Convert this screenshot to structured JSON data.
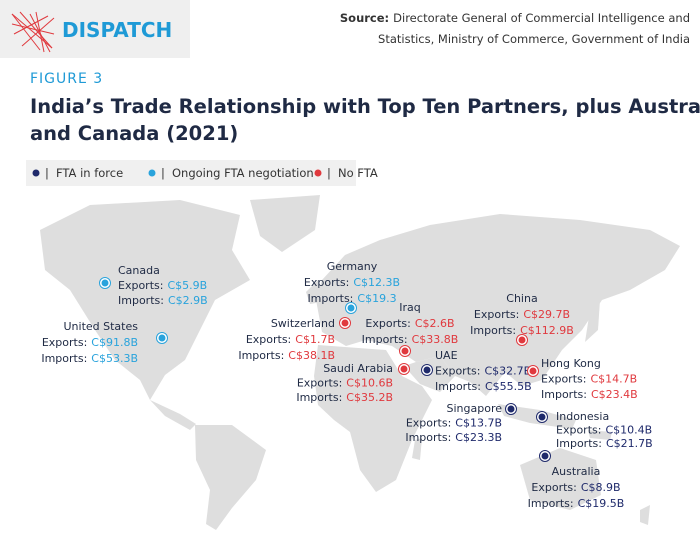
{
  "header": {
    "logo": "DISPATCH",
    "source": {
      "label": "Source:",
      "lines": [
        "Directorate General of Commercial Intelligence and",
        "Statistics, Ministry of Commerce, Government of India"
      ]
    }
  },
  "figure": "FIGURE 3",
  "title": [
    "India’s Trade Relationship with Top Ten Partners, plus Australia,",
    "and Canada (2021)"
  ],
  "legend": {
    "separator": "|",
    "items": [
      {
        "label": "FTA in force",
        "color": "#1f2a6b"
      },
      {
        "label": "Ongoing FTA negotiation",
        "color": "#29a3dc"
      },
      {
        "label": "No FTA",
        "color": "#e0393e"
      }
    ]
  },
  "locations": [
    {
      "name": "Canada",
      "color": "#29a3dc",
      "exports": {
        "label": "Exports:",
        "value": "C$5.9B"
      },
      "imports": {
        "label": "Imports:",
        "value": "C$2.9B"
      }
    },
    {
      "name": "United States",
      "color": "#29a3dc",
      "exports": {
        "label": "Exports:",
        "value": "C$91.8B"
      },
      "imports": {
        "label": "Imports:",
        "value": "C$53.3B"
      }
    },
    {
      "name": "Germany",
      "color": "#29a3dc",
      "exports": {
        "label": "Exports:",
        "value": "C$12.3B"
      },
      "imports": {
        "label": "Imports:",
        "value": "C$19.3"
      }
    },
    {
      "name": "Switzerland",
      "color": "#e0393e",
      "exports": {
        "label": "Exports:",
        "value": "C$1.7B"
      },
      "imports": {
        "label": "Imports:",
        "value": "C$38.1B"
      }
    },
    {
      "name": "Iraq",
      "color": "#e0393e",
      "exports": {
        "label": "Exports:",
        "value": "C$2.6B"
      },
      "imports": {
        "label": "Imports:",
        "value": "C$33.8B"
      }
    },
    {
      "name": "Saudi Arabia",
      "color": "#e0393e",
      "exports": {
        "label": "Exports:",
        "value": "C$10.6B"
      },
      "imports": {
        "label": "Imports:",
        "value": "C$35.2B"
      }
    },
    {
      "name": "UAE",
      "color": "#1f2a6b",
      "exports": {
        "label": "Exports:",
        "value": "C$32.7B"
      },
      "imports": {
        "label": "Imports:",
        "value": "C$55.5B"
      }
    },
    {
      "name": "China",
      "color": "#e0393e",
      "exports": {
        "label": "Exports:",
        "value": "C$29.7B"
      },
      "imports": {
        "label": "Imports:",
        "value": "C$112.9B"
      }
    },
    {
      "name": "Hong Kong",
      "color": "#e0393e",
      "exports": {
        "label": "Exports:",
        "value": "C$14.7B"
      },
      "imports": {
        "label": "Imports:",
        "value": "C$23.4B"
      }
    },
    {
      "name": "Singapore",
      "color": "#1f2a6b",
      "exports": {
        "label": "Exports:",
        "value": "C$13.7B"
      },
      "imports": {
        "label": "Imports:",
        "value": "C$23.3B"
      }
    },
    {
      "name": "Indonesia",
      "color": "#1f2a6b",
      "exports": {
        "label": "Exports:",
        "value": "C$10.4B"
      },
      "imports": {
        "label": "Imports:",
        "value": "C$21.7B"
      }
    },
    {
      "name": "Australia",
      "color": "#1f2a6b",
      "exports": {
        "label": "Exports:",
        "value": "C$8.9B"
      },
      "imports": {
        "label": "Imports:",
        "value": "C$19.5B"
      }
    }
  ]
}
